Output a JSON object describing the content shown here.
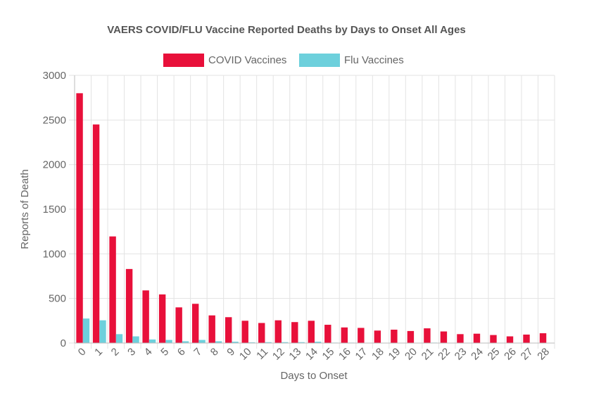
{
  "chart_data": {
    "type": "bar",
    "title": "VAERS COVID/FLU Vaccine Reported Deaths by Days to Onset All Ages",
    "xlabel": "Days to Onset",
    "ylabel": "Reports of Death",
    "ylim": [
      0,
      3000
    ],
    "yticks": [
      "0",
      "500",
      "1000",
      "1500",
      "2000",
      "2500",
      "3000"
    ],
    "categories": [
      "0",
      "1",
      "2",
      "3",
      "4",
      "5",
      "6",
      "7",
      "8",
      "9",
      "10",
      "11",
      "12",
      "13",
      "14",
      "15",
      "16",
      "17",
      "18",
      "19",
      "20",
      "21",
      "22",
      "23",
      "24",
      "25",
      "26",
      "27",
      "28"
    ],
    "series": [
      {
        "name": "COVID Vaccines",
        "color": "#e8103a",
        "values": [
          2800,
          2450,
          1195,
          830,
          590,
          545,
          400,
          440,
          310,
          290,
          250,
          225,
          255,
          235,
          250,
          205,
          175,
          170,
          140,
          150,
          135,
          165,
          130,
          100,
          105,
          90,
          75,
          95,
          110
        ]
      },
      {
        "name": "Flu Vaccines",
        "color": "#6dd0dc",
        "values": [
          275,
          255,
          100,
          75,
          40,
          35,
          20,
          35,
          20,
          15,
          8,
          10,
          10,
          10,
          15,
          5,
          5,
          3,
          3,
          3,
          2,
          5,
          2,
          2,
          2,
          2,
          2,
          2,
          2
        ]
      }
    ],
    "grid": true,
    "legend_position": "top"
  }
}
